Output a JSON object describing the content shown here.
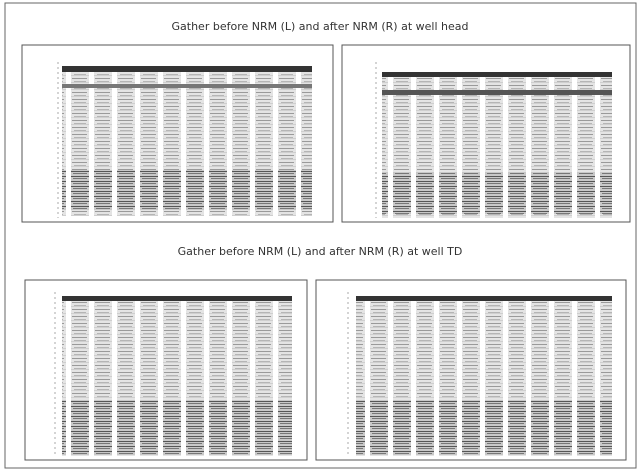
{
  "figures": [
    {
      "caption": "Gather before NRM (L) and after NRM (R) at well head"
    },
    {
      "caption": "Gather before NRM (L) and after NRM (R) at well TD"
    }
  ]
}
